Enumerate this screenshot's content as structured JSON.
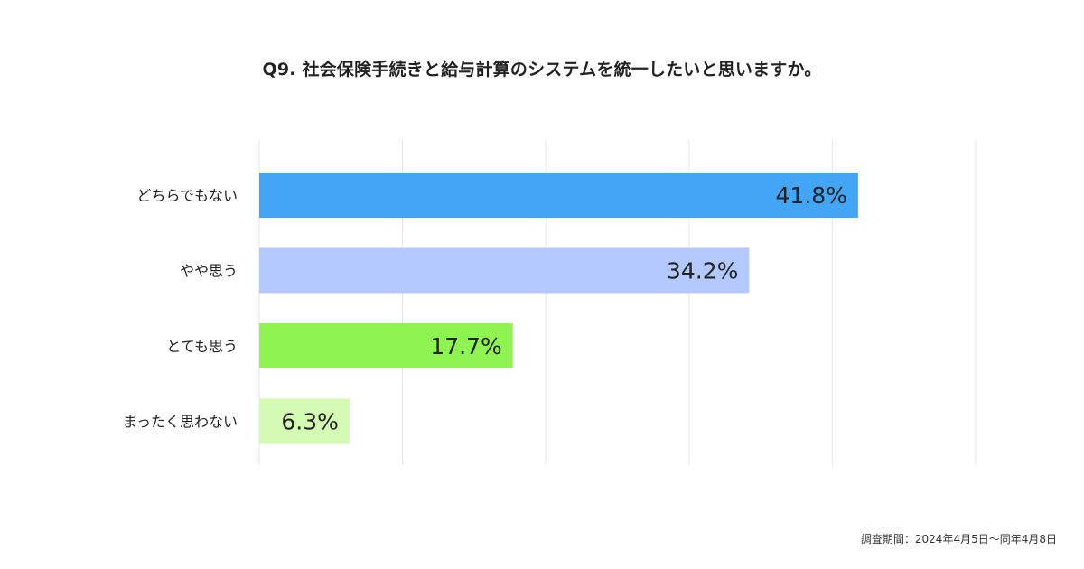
{
  "chart_data": {
    "type": "bar",
    "orientation": "horizontal",
    "title": "Q9. 社会保険手続きと給与計算のシステムを統一したいと思いますか。",
    "categories": [
      "どちらでもない",
      "やや思う",
      "とても思う",
      "まったく思わない"
    ],
    "values": [
      41.8,
      34.2,
      17.7,
      6.3
    ],
    "value_labels": [
      "41.8%",
      "34.2%",
      "17.7%",
      "6.3%"
    ],
    "unit": "%",
    "xlim": [
      0,
      50
    ],
    "grid": true,
    "legend": "none",
    "colors": [
      "#42a5f5",
      "#b3c9ff",
      "#8ef44f",
      "#d3fbb3"
    ],
    "gridline_color": "#e6e6e6"
  },
  "footnote": "調査期間：2024年4月5日〜同年4月8日"
}
